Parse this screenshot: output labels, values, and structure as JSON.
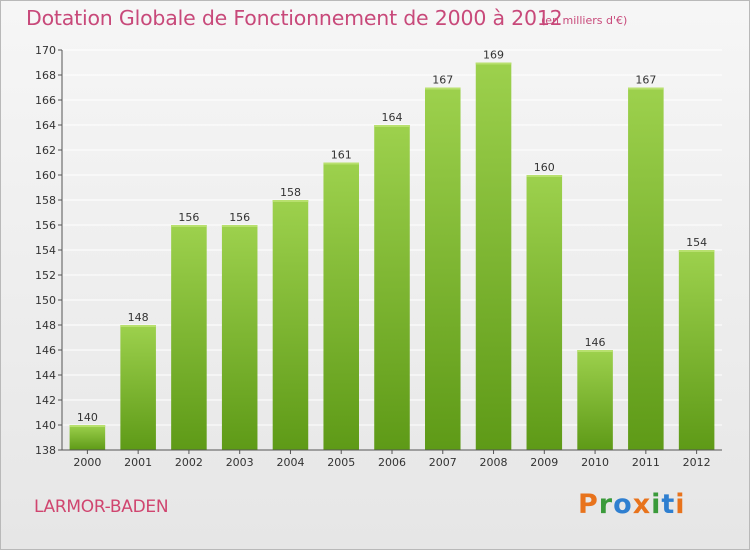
{
  "header": {
    "title": "Dotation Globale de Fonctionnement de 2000 à 2012",
    "subtitle": "(en milliers d'€)"
  },
  "footer": {
    "commune": "LARMOR-BADEN"
  },
  "logo": {
    "text": "Proxiti",
    "letter_colors": [
      "#e8731c",
      "#3a9a3a",
      "#2f7fd0",
      "#e8731c",
      "#3a9a3a",
      "#2f7fd0",
      "#e8731c"
    ]
  },
  "colors": {
    "title": "#c8497a",
    "bar_top": "#9dd14d",
    "bar_bottom": "#5e9a17",
    "grid": "#ffffff",
    "axis_text": "#333333"
  },
  "chart_data": {
    "type": "bar",
    "title": "Dotation Globale de Fonctionnement de 2000 à 2012",
    "subtitle": "(en milliers d'€)",
    "categories": [
      "2000",
      "2001",
      "2002",
      "2003",
      "2004",
      "2005",
      "2006",
      "2007",
      "2008",
      "2009",
      "2010",
      "2011",
      "2012"
    ],
    "values": [
      140,
      148,
      156,
      156,
      158,
      161,
      164,
      167,
      169,
      160,
      146,
      167,
      154
    ],
    "ylim": [
      138,
      170
    ],
    "yticks": [
      138,
      140,
      142,
      144,
      146,
      148,
      150,
      152,
      154,
      156,
      158,
      160,
      162,
      164,
      166,
      168,
      170
    ],
    "grid": true,
    "data_labels": true,
    "xlabel": "",
    "ylabel": ""
  }
}
